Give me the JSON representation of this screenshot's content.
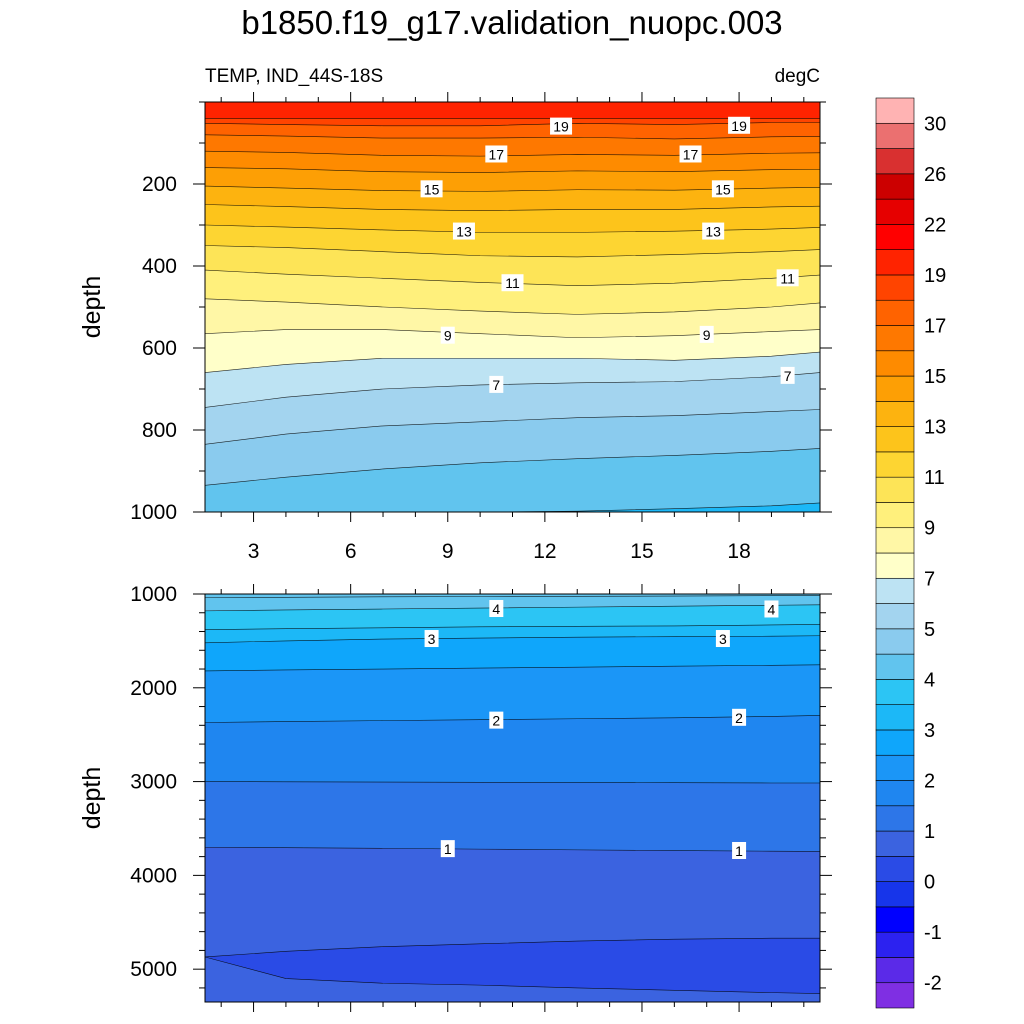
{
  "title": "b1850.f19_g17.validation_nuopc.003",
  "left_string": "TEMP, IND_44S-18S",
  "right_string": "degC",
  "chart_data": [
    {
      "type": "heatmap",
      "panel": "upper",
      "ylabel": "depth",
      "xlim": [
        1.5,
        20.5
      ],
      "ylim": [
        1000,
        0
      ],
      "x_ticks": [
        3,
        6,
        9,
        12,
        15,
        18
      ],
      "x_tick_labels": [
        "3",
        "6",
        "9",
        "12",
        "15",
        "18"
      ],
      "y_ticks": [
        200,
        400,
        600,
        800,
        1000
      ],
      "y_tick_labels": [
        "200",
        "400",
        "600",
        "800",
        "1000"
      ],
      "contour_levels": [
        20,
        19,
        18,
        17,
        16,
        15,
        14,
        13,
        12,
        11,
        10,
        9,
        8,
        7,
        6,
        5
      ],
      "isotherm_depths": {
        "x": [
          1.5,
          4,
          7,
          10,
          13,
          16,
          19,
          20.5
        ],
        "levels": [
          {
            "t": 20,
            "depth": [
              40,
              40,
              40,
              40,
              40,
              40,
              40,
              40
            ]
          },
          {
            "t": 19,
            "depth": [
              52,
              55,
              58,
              58,
              52,
              55,
              50,
              50
            ]
          },
          {
            "t": 18,
            "depth": [
              80,
              83,
              88,
              88,
              86,
              90,
              85,
              84
            ]
          },
          {
            "t": 17,
            "depth": [
              120,
              123,
              130,
              132,
              128,
              130,
              125,
              124
            ]
          },
          {
            "t": 16,
            "depth": [
              160,
              163,
              170,
              172,
              168,
              170,
              165,
              164
            ]
          },
          {
            "t": 15,
            "depth": [
              205,
              210,
              216,
              218,
              214,
              215,
              210,
              208
            ]
          },
          {
            "t": 14,
            "depth": [
              250,
              255,
              262,
              265,
              262,
              262,
              256,
              254
            ]
          },
          {
            "t": 13,
            "depth": [
              300,
              305,
              312,
              318,
              318,
              315,
              310,
              306
            ]
          },
          {
            "t": 12,
            "depth": [
              350,
              355,
              365,
              375,
              378,
              372,
              365,
              360
            ]
          },
          {
            "t": 11,
            "depth": [
              410,
              420,
              430,
              440,
              448,
              442,
              430,
              422
            ]
          },
          {
            "t": 10,
            "depth": [
              480,
              488,
              500,
              510,
              518,
              512,
              500,
              490
            ]
          },
          {
            "t": 9,
            "depth": [
              565,
              555,
              555,
              565,
              575,
              570,
              560,
              555
            ]
          },
          {
            "t": 8,
            "depth": [
              660,
              640,
              625,
              625,
              625,
              630,
              620,
              610
            ]
          },
          {
            "t": 7,
            "depth": [
              745,
              720,
              700,
              690,
              685,
              682,
              670,
              660
            ]
          },
          {
            "t": 6,
            "depth": [
              835,
              810,
              790,
              780,
              770,
              765,
              755,
              750
            ]
          },
          {
            "t": 5,
            "depth": [
              935,
              915,
              895,
              880,
              870,
              862,
              852,
              845
            ]
          }
        ]
      },
      "deep_level": {
        "t": 4,
        "depth": [
          1010,
          1010,
          1005,
          1000,
          998,
          992,
          985,
          978
        ]
      },
      "labels": [
        {
          "text": "19",
          "x": 12.5,
          "depth": 60
        },
        {
          "text": "19",
          "x": 18,
          "depth": 58
        },
        {
          "text": "17",
          "x": 10.5,
          "depth": 128
        },
        {
          "text": "17",
          "x": 16.5,
          "depth": 128
        },
        {
          "text": "15",
          "x": 8.5,
          "depth": 213
        },
        {
          "text": "15",
          "x": 17.5,
          "depth": 213
        },
        {
          "text": "13",
          "x": 9.5,
          "depth": 316
        },
        {
          "text": "13",
          "x": 17.2,
          "depth": 316
        },
        {
          "text": "11",
          "x": 11,
          "depth": 442
        },
        {
          "text": "11",
          "x": 19.5,
          "depth": 430
        },
        {
          "text": "9",
          "x": 9,
          "depth": 570
        },
        {
          "text": "9",
          "x": 17,
          "depth": 568
        },
        {
          "text": "7",
          "x": 10.5,
          "depth": 690
        },
        {
          "text": "7",
          "x": 19.5,
          "depth": 668
        }
      ]
    },
    {
      "type": "heatmap",
      "panel": "lower",
      "ylabel": "depth",
      "xlim": [
        1.5,
        20.5
      ],
      "ylim": [
        5350,
        1000
      ],
      "x_ticks": [
        3,
        6,
        9,
        12,
        15,
        18
      ],
      "y_ticks": [
        1000,
        2000,
        3000,
        4000,
        5000
      ],
      "y_tick_labels": [
        "1000",
        "2000",
        "3000",
        "4000",
        "5000"
      ],
      "contour_levels": [
        4.5,
        4,
        3.5,
        3,
        2.5,
        2,
        1.5,
        1,
        0.5
      ],
      "isotherm_depths": {
        "x": [
          1.5,
          4,
          7,
          10,
          13,
          16,
          19,
          20.5
        ],
        "levels": [
          {
            "t": 4.5,
            "depth": [
              1040,
              1035,
              1030,
              1028,
              1025,
              1022,
              1018,
              1015
            ]
          },
          {
            "t": 4,
            "depth": [
              1180,
              1170,
              1160,
              1150,
              1140,
              1130,
              1120,
              1115
            ]
          },
          {
            "t": 3.5,
            "depth": [
              1380,
              1370,
              1360,
              1350,
              1345,
              1340,
              1330,
              1325
            ]
          },
          {
            "t": 3,
            "depth": [
              1520,
              1500,
              1480,
              1470,
              1460,
              1455,
              1450,
              1445
            ]
          },
          {
            "t": 2.5,
            "depth": [
              1820,
              1810,
              1800,
              1790,
              1780,
              1770,
              1760,
              1755
            ]
          },
          {
            "t": 2,
            "depth": [
              2370,
              2360,
              2350,
              2340,
              2330,
              2320,
              2305,
              2295
            ]
          },
          {
            "t": 1.5,
            "depth": [
              3000,
              3002,
              3005,
              3008,
              3010,
              3012,
              3015,
              3015
            ]
          },
          {
            "t": 1,
            "depth": [
              3700,
              3705,
              3712,
              3720,
              3728,
              3735,
              3742,
              3745
            ]
          }
        ]
      },
      "cold_region": {
        "t": 0.5,
        "top": [
          4870,
          4810,
          4760,
          4730,
          4700,
          4680,
          4670,
          4670
        ],
        "bottom": [
          4870,
          5100,
          5150,
          5170,
          5200,
          5225,
          5250,
          5260
        ]
      },
      "labels": [
        {
          "text": "4",
          "x": 10.5,
          "depth": 1160
        },
        {
          "text": "4",
          "x": 19,
          "depth": 1165
        },
        {
          "text": "3",
          "x": 8.5,
          "depth": 1480
        },
        {
          "text": "3",
          "x": 17.5,
          "depth": 1480
        },
        {
          "text": "2",
          "x": 10.5,
          "depth": 2350
        },
        {
          "text": "2",
          "x": 18,
          "depth": 2320
        },
        {
          "text": "1",
          "x": 9,
          "depth": 3720
        },
        {
          "text": "1",
          "x": 18,
          "depth": 3740
        }
      ]
    }
  ],
  "colorbar": {
    "colors": [
      "#7f2fe3",
      "#5b2ae8",
      "#2c22f0",
      "#0000ff",
      "#1735ea",
      "#2a4be6",
      "#3b63e0",
      "#2d76e8",
      "#1f86f0",
      "#1b96f7",
      "#0fa6fb",
      "#1cb8f7",
      "#2cc5f4",
      "#61c4ee",
      "#8acbee",
      "#a3d4ef",
      "#bde3f3",
      "#ffffc9",
      "#fff7a6",
      "#fff07c",
      "#fde457",
      "#fdd532",
      "#fdc41b",
      "#fdb30f",
      "#fd9f05",
      "#fe8b00",
      "#fe7800",
      "#ff6300",
      "#ff4400",
      "#ff2300",
      "#ff0000",
      "#e60000",
      "#cc0000",
      "#d93030",
      "#eb7070",
      "#ffb3b3"
    ],
    "labels": [
      "-2",
      "-1",
      "0",
      "1",
      "2",
      "3",
      "4",
      "5",
      "7",
      "9",
      "11",
      "13",
      "15",
      "17",
      "19",
      "22",
      "26",
      "30"
    ]
  }
}
